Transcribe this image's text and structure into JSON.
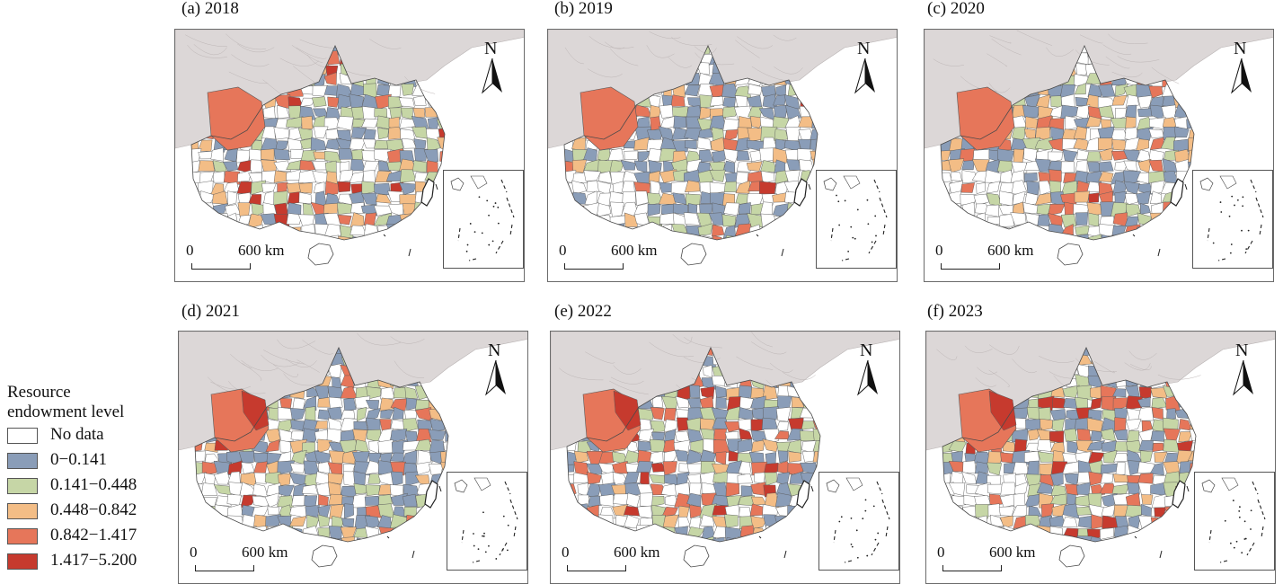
{
  "legend": {
    "title_line1": "Resource",
    "title_line2": "endowment  level",
    "classes": [
      {
        "label": "No data",
        "color": "#ffffff"
      },
      {
        "label": "0−0.141",
        "color": "#8a9db8"
      },
      {
        "label": "0.141−0.448",
        "color": "#c6d6a6"
      },
      {
        "label": "0.448−0.842",
        "color": "#f3bd86"
      },
      {
        "label": "0.842−1.417",
        "color": "#e6765a"
      },
      {
        "label": "1.417−5.200",
        "color": "#c63a2e"
      }
    ]
  },
  "neighbor_color": "#dcd7d7",
  "panels": [
    {
      "title": "(a) 2018",
      "scale_zero": "0",
      "scale_dist": "600 km",
      "north": "N"
    },
    {
      "title": "(b) 2019",
      "scale_zero": "0",
      "scale_dist": "600 km",
      "north": "N"
    },
    {
      "title": "(c) 2020",
      "scale_zero": "0",
      "scale_dist": "600 km",
      "north": "N"
    },
    {
      "title": "(d) 2021",
      "scale_zero": "0",
      "scale_dist": "600 km",
      "north": "N"
    },
    {
      "title": "(e) 2022",
      "scale_zero": "0",
      "scale_dist": "600 km",
      "north": "N"
    },
    {
      "title": "(f) 2023",
      "scale_zero": "0",
      "scale_dist": "600 km",
      "north": "N"
    }
  ]
}
